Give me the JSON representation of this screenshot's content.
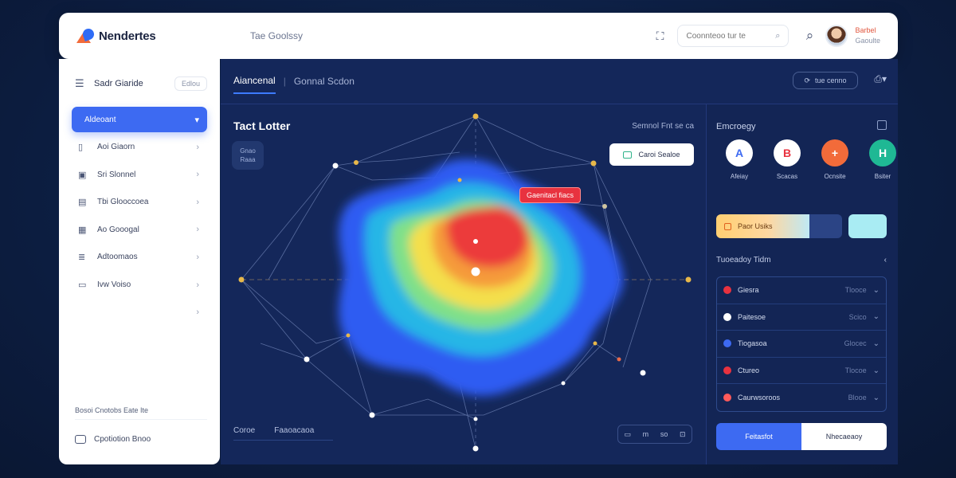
{
  "header": {
    "brand": "Nendertes",
    "breadcrumb": "Tae Goolssy",
    "search_placeholder": "Coonnteoo tur te",
    "user_name": "Barbel",
    "user_role": "Gaoulte"
  },
  "sidebar": {
    "title": "Sadr Giaride",
    "title_pill": "Edlou",
    "items": [
      {
        "label": "Aldeoant",
        "icon": "home-icon"
      },
      {
        "label": "Aoi Giaorn",
        "icon": "book-icon"
      },
      {
        "label": "Sri Slonnel",
        "icon": "briefcase-icon"
      },
      {
        "label": "Tbi Glooccoea",
        "icon": "document-icon"
      },
      {
        "label": "Ao Gooogal",
        "icon": "grid-icon"
      },
      {
        "label": "Adtoomaos",
        "icon": "stack-icon"
      },
      {
        "label": "Ivw Voiso",
        "icon": "chat-icon"
      },
      {
        "label": "",
        "icon": ""
      }
    ],
    "footer_label": "Bosoi Cnotobs Eate Ite",
    "help_label": "Cpotiotion Bnoo"
  },
  "main": {
    "tab_active": "Aiancenal",
    "tab_other": "Gonnal Scdon",
    "filter_label": "tue cenno",
    "viz_title": "Tact Lotter",
    "viz_meta": "Semnol Fnt se ca",
    "viz_badge_line1": "Gnao",
    "viz_badge_line2": "Raaa",
    "overlay_button": "Caroi Sealoe",
    "hot_label": "Gaenitacl fiacs",
    "bottom_tab_1": "Coroe",
    "bottom_tab_2": "Faaoacaoa",
    "toolbar_1": "m",
    "toolbar_2": "so"
  },
  "right_panel": {
    "title": "Emcroegy",
    "categories": [
      {
        "label": "Afeiay",
        "glyph": "A",
        "bg": "#ffffff",
        "fg": "#3d6af2"
      },
      {
        "label": "Scacas",
        "glyph": "B",
        "bg": "#ffffff",
        "fg": "#e8323f"
      },
      {
        "label": "Ocnsite",
        "glyph": "+",
        "bg": "#f26b3a",
        "fg": "#ffffff"
      },
      {
        "label": "Bsiter",
        "glyph": "H",
        "bg": "#1fb894",
        "fg": "#ffffff"
      }
    ],
    "progress_label": "Paor Usiks",
    "progress_fraction": 0.74,
    "summary_title": "Tuoeadoy Tidm",
    "rows": [
      {
        "name": "Giesra",
        "value": "Tlooce",
        "color": "#e8323f"
      },
      {
        "name": "Paitesoe",
        "value": "Scico",
        "color": "#ffffff"
      },
      {
        "name": "Tiogasoa",
        "value": "Glocec",
        "color": "#3d6af2"
      },
      {
        "name": "Ctureo",
        "value": "Tlocoe",
        "color": "#e8323f"
      },
      {
        "name": "Caurwsoroos",
        "value": "Blooe",
        "color": "#ff5a5a"
      }
    ],
    "primary_action": "Feitasfot",
    "secondary_action": "Nhecaeaoy"
  }
}
